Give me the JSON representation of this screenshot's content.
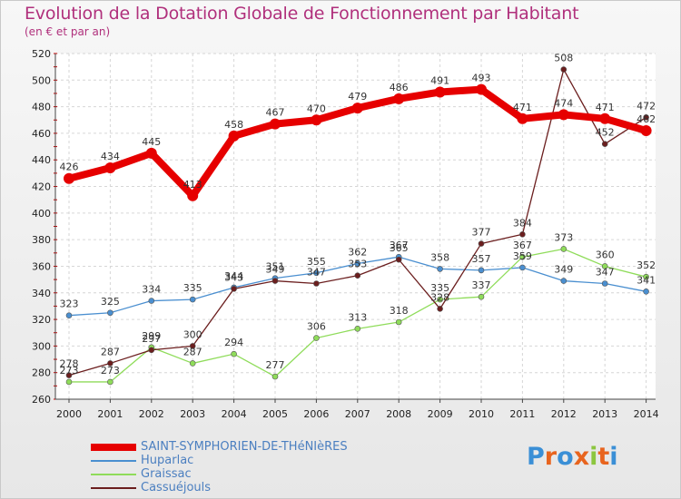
{
  "chart_data": {
    "type": "line",
    "title": "Evolution de la Dotation Globale de Fonctionnement par Habitant",
    "subtitle": "(en € et par an)",
    "xlabel": "",
    "ylabel": "",
    "ylim": [
      260,
      520
    ],
    "yticks": [
      260,
      280,
      300,
      320,
      340,
      360,
      380,
      400,
      420,
      440,
      460,
      480,
      500,
      520
    ],
    "categories": [
      "2000",
      "2001",
      "2002",
      "2003",
      "2004",
      "2005",
      "2006",
      "2007",
      "2008",
      "2009",
      "2010",
      "2011",
      "2012",
      "2013",
      "2014"
    ],
    "grid": true,
    "series": [
      {
        "name": "SAINT-SYMPHORIEN-DE-THéNIèRES",
        "color": "#e60000",
        "values": [
          426,
          434,
          445,
          413,
          458,
          467,
          470,
          479,
          486,
          491,
          493,
          471,
          474,
          471,
          462
        ]
      },
      {
        "name": "Huparlac",
        "color": "#4a8fd0",
        "values": [
          323,
          325,
          334,
          335,
          344,
          351,
          355,
          362,
          367,
          358,
          357,
          359,
          349,
          347,
          341
        ]
      },
      {
        "name": "Graissac",
        "color": "#8fdc5a",
        "values": [
          273,
          273,
          299,
          287,
          294,
          277,
          306,
          313,
          318,
          335,
          337,
          367,
          373,
          360,
          352
        ]
      },
      {
        "name": "Cassuéjouls",
        "color": "#6b1e1e",
        "values": [
          278,
          287,
          297,
          300,
          343,
          349,
          347,
          353,
          365,
          328,
          377,
          384,
          508,
          452,
          472
        ]
      }
    ]
  },
  "logo": {
    "text": "Proxiti",
    "letters": [
      "P",
      "r",
      "o",
      "x",
      "i",
      "t",
      "i"
    ],
    "colors": [
      "#3a8fd6",
      "#e8641e",
      "#3a8fd6",
      "#e8641e",
      "#8cc63f",
      "#e8641e",
      "#3a8fd6"
    ]
  }
}
